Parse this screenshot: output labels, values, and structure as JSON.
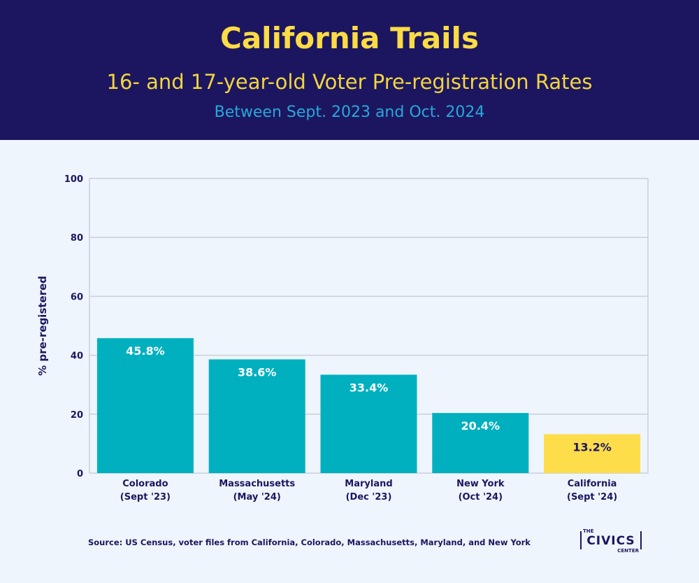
{
  "header": {
    "title": "California Trails",
    "subtitle": "16- and 17-year-old Voter Pre-registration Rates",
    "subtitle2": "Between Sept. 2023 and Oct. 2024"
  },
  "colors": {
    "header_bg": "#1c1660",
    "title": "#fcdc44",
    "subtitle2": "#29a8d8",
    "bar": "#00b0bf",
    "highlight_bar": "#fedd4a",
    "axis_text": "#1c1660",
    "grid": "#c9d0dc",
    "background": "#eef5fc"
  },
  "chart_data": {
    "type": "bar",
    "title": "California Trails",
    "subtitle": "16- and 17-year-old Voter Pre-registration Rates",
    "xlabel": "",
    "ylabel": "% pre-registered",
    "ylim": [
      0,
      100
    ],
    "yticks": [
      0,
      20,
      40,
      60,
      80,
      100
    ],
    "grid": true,
    "categories": [
      [
        "Colorado",
        "(Sept '23)"
      ],
      [
        "Massachusetts",
        "(May '24)"
      ],
      [
        "Maryland",
        "(Dec '23)"
      ],
      [
        "New York",
        "(Oct '24)"
      ],
      [
        "California",
        "(Sept '24)"
      ]
    ],
    "values": [
      45.8,
      38.6,
      33.4,
      20.4,
      13.2
    ],
    "value_labels": [
      "45.8%",
      "38.6%",
      "33.4%",
      "20.4%",
      "13.2%"
    ],
    "highlight": [
      false,
      false,
      false,
      false,
      true
    ]
  },
  "footer": {
    "source": "Source: US Census, voter files from California, Colorado, Massachusetts, Maryland, and New York"
  },
  "logo": {
    "the": "THE",
    "name": "CIVICS",
    "center": "CENTER"
  }
}
